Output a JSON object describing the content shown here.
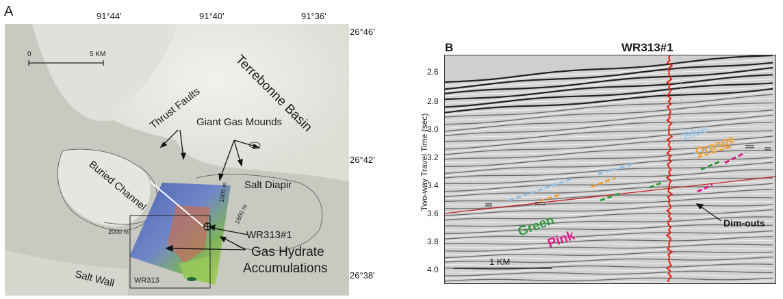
{
  "panel_a": {
    "label": "A",
    "top_ticks": [
      "91°44'",
      "91°40'",
      "91°36'"
    ],
    "right_ticks": [
      "26°46'",
      "26°42'",
      "26°38'"
    ],
    "scale": {
      "zero": "0",
      "distance": "5 KM"
    },
    "labels": {
      "basin": "Terrebonne Basin",
      "thrust": "Thrust Faults",
      "mounds": "Giant Gas Mounds",
      "channel": "Buried Channel",
      "diapir": "Salt Diapir",
      "wall": "Salt Wall",
      "well": "WR313#1",
      "hydrate_1": "Gas Hydrate",
      "hydrate_2": "Accumulations",
      "block": "WR313",
      "depth_2000": "2000 m",
      "depth_1800a": "1800 m",
      "depth_1800b": "1800 m"
    },
    "colors": {
      "bathymetry": "#c9cbc2",
      "basin_light": "#eceee8",
      "survey_blue": "#5d72b8",
      "survey_green": "#9ec95a",
      "survey_red": "#c27058"
    }
  },
  "panel_b": {
    "label": "B",
    "title": "WR313#1",
    "ylabel": "Two-way Travel Time (sec)",
    "y_ticks": [
      "2.6",
      "2.8",
      "3.0",
      "3.2",
      "3.4",
      "3.6",
      "3.8",
      "4.0"
    ],
    "horizons": {
      "blue": "Blue",
      "orange": "Orange",
      "green": "Green",
      "pink": "Pink"
    },
    "dimouts": "Dim-outs",
    "scale": "1 KM",
    "colors": {
      "blue": "#8fc0ea",
      "orange": "#f0a030",
      "green": "#2e9a3c",
      "pink": "#e0188a",
      "log": "#e02010",
      "base_line": "#c81e1e"
    }
  }
}
